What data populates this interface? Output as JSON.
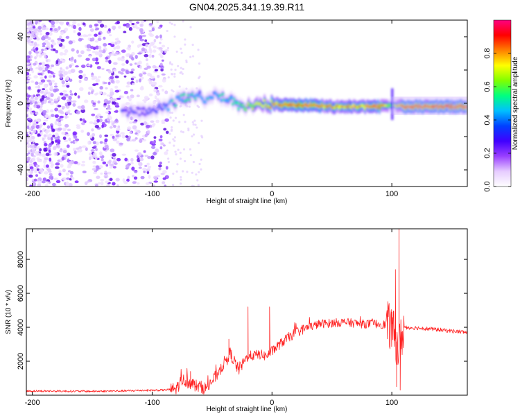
{
  "chart_data": [
    {
      "type": "heatmap",
      "title": "GN04.2025.341.19.39.R11",
      "xlabel": "Height of straight line (km)",
      "ylabel": "Frequency (Hz)",
      "xlim": [
        -205,
        163
      ],
      "ylim": [
        -50,
        50
      ],
      "xticks": [
        -200,
        -100,
        0,
        100
      ],
      "yticks": [
        -40,
        -20,
        0,
        20,
        40
      ],
      "colorbar": {
        "label": "Normalized spectral amplitude",
        "range": [
          0,
          1
        ],
        "ticks": [
          "0.0",
          "0.2",
          "0.4",
          "0.6",
          "0.8"
        ],
        "colors": [
          "#ffffff",
          "#e6ccff",
          "#9a40ff",
          "#4000ff",
          "#0040ff",
          "#00c0ff",
          "#00ff80",
          "#80ff00",
          "#ffff00",
          "#ff8000",
          "#ff0000",
          "#ff0080"
        ]
      },
      "ridge": [
        {
          "x": -125,
          "f": -5,
          "amp": 0.35
        },
        {
          "x": -110,
          "f": -5,
          "amp": 0.3
        },
        {
          "x": -95,
          "f": -3,
          "amp": 0.35
        },
        {
          "x": -85,
          "f": -1,
          "amp": 0.45
        },
        {
          "x": -75,
          "f": 3,
          "amp": 0.5
        },
        {
          "x": -65,
          "f": 5,
          "amp": 0.45
        },
        {
          "x": -55,
          "f": 3,
          "amp": 0.45
        },
        {
          "x": -45,
          "f": 5,
          "amp": 0.45
        },
        {
          "x": -35,
          "f": 2,
          "amp": 0.5
        },
        {
          "x": -25,
          "f": -2,
          "amp": 0.6
        },
        {
          "x": -15,
          "f": -2,
          "amp": 0.7
        },
        {
          "x": -5,
          "f": 0,
          "amp": 0.75
        },
        {
          "x": 10,
          "f": -1,
          "amp": 0.85
        },
        {
          "x": 30,
          "f": -1,
          "amp": 0.85
        },
        {
          "x": 50,
          "f": -2,
          "amp": 0.8
        },
        {
          "x": 70,
          "f": -2,
          "amp": 0.8
        },
        {
          "x": 90,
          "f": -2,
          "amp": 0.85
        },
        {
          "x": 100,
          "f": -1,
          "amp": 0.6
        },
        {
          "x": 110,
          "f": -2,
          "amp": 0.9
        },
        {
          "x": 130,
          "f": -2,
          "amp": 0.9
        },
        {
          "x": 150,
          "f": -2,
          "amp": 0.9
        },
        {
          "x": 163,
          "f": -2,
          "amp": 0.9
        }
      ]
    },
    {
      "type": "line",
      "xlabel": "Height of straight line (km)",
      "ylabel": "SNR (10 * v/v)",
      "xlim": [
        -205,
        163
      ],
      "ylim": [
        0,
        9800
      ],
      "xticks": [
        -200,
        -100,
        0,
        100
      ],
      "yticks": [
        2000,
        4000,
        6000,
        8000
      ],
      "color": "#ff2020",
      "anchors": [
        {
          "x": -205,
          "y": 250
        },
        {
          "x": -150,
          "y": 230
        },
        {
          "x": -125,
          "y": 250
        },
        {
          "x": -110,
          "y": 280
        },
        {
          "x": -90,
          "y": 300
        },
        {
          "x": -80,
          "y": 380
        },
        {
          "x": -75,
          "y": 900
        },
        {
          "x": -70,
          "y": 800
        },
        {
          "x": -63,
          "y": 550
        },
        {
          "x": -55,
          "y": 400
        },
        {
          "x": -48,
          "y": 1000
        },
        {
          "x": -40,
          "y": 1900
        },
        {
          "x": -35,
          "y": 2500
        },
        {
          "x": -28,
          "y": 1500
        },
        {
          "x": -20,
          "y": 2300
        },
        {
          "x": -10,
          "y": 2400
        },
        {
          "x": -5,
          "y": 2300
        },
        {
          "x": 0,
          "y": 2600
        },
        {
          "x": 5,
          "y": 2900
        },
        {
          "x": 10,
          "y": 3200
        },
        {
          "x": 20,
          "y": 3700
        },
        {
          "x": 30,
          "y": 4000
        },
        {
          "x": 40,
          "y": 4200
        },
        {
          "x": 50,
          "y": 4250
        },
        {
          "x": 60,
          "y": 4300
        },
        {
          "x": 75,
          "y": 4200
        },
        {
          "x": 90,
          "y": 4200
        },
        {
          "x": 98,
          "y": 4100
        },
        {
          "x": 102,
          "y": 3500
        },
        {
          "x": 106,
          "y": 2800
        },
        {
          "x": 110,
          "y": 4000
        },
        {
          "x": 125,
          "y": 3950
        },
        {
          "x": 140,
          "y": 3850
        },
        {
          "x": 155,
          "y": 3750
        },
        {
          "x": 163,
          "y": 3700
        }
      ],
      "spikes": [
        {
          "x": -68,
          "y": 1400
        },
        {
          "x": -36,
          "y": 3300
        },
        {
          "x": -20,
          "y": 5200
        },
        {
          "x": -2,
          "y": 5200
        },
        {
          "x": 100,
          "y": 4900
        },
        {
          "x": 103,
          "y": 7400
        },
        {
          "x": 104,
          "y": 500
        },
        {
          "x": 106,
          "y": 9800
        },
        {
          "x": 107,
          "y": 300
        }
      ]
    }
  ]
}
